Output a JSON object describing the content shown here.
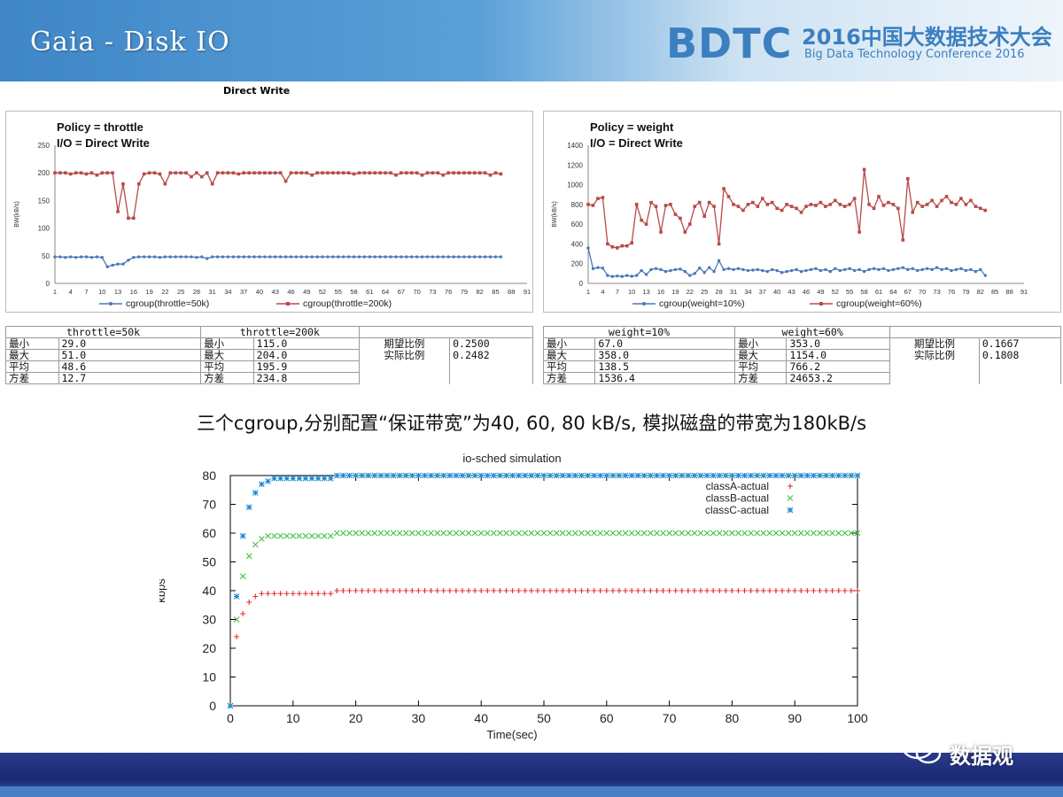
{
  "header": {
    "title": "Gaia - Disk IO",
    "logo": "BDTC",
    "logo_cn": "2016中国大数据技术大会",
    "logo_en": "Big Data Technology Conference 2016"
  },
  "caption_top": "Direct Write",
  "subtitle": "三个cgroup,分别配置“保证带宽”为40, 60, 80 kB/s, 模拟磁盘的带宽为180kB/s",
  "watermark": "数据观",
  "colors": {
    "blue_series": "#4a78b8",
    "red_series": "#b84a48",
    "classA": "#e03030",
    "classB": "#40c040",
    "classC": "#1a8ad0"
  },
  "chart_data": [
    {
      "type": "line",
      "title": "Policy = throttle",
      "subtitle": "I/O = Direct Write",
      "ylabel": "BW(kB/s)",
      "ylim": [
        0,
        250
      ],
      "yticks": [
        0,
        50,
        100,
        150,
        200,
        250
      ],
      "xticks": [
        "1",
        "4",
        "7",
        "10",
        "13",
        "16",
        "19",
        "22",
        "25",
        "28",
        "31",
        "34",
        "37",
        "40",
        "43",
        "46",
        "49",
        "52",
        "55",
        "58",
        "61",
        "64",
        "67",
        "70",
        "73",
        "76",
        "79",
        "82",
        "85",
        "88",
        "91"
      ],
      "legend": "bottom",
      "series": [
        {
          "name": "cgroup(throttle=50k)",
          "color": "#4a78b8",
          "values": [
            48,
            48,
            47,
            48,
            47,
            48,
            48,
            47,
            48,
            47,
            30,
            33,
            35,
            35,
            42,
            47,
            48,
            48,
            48,
            48,
            47,
            48,
            48,
            48,
            48,
            48,
            48,
            47,
            48,
            45,
            48,
            48,
            48,
            48,
            48,
            48,
            48,
            48,
            48,
            48,
            48,
            48,
            48,
            48,
            48,
            48,
            48,
            48,
            48,
            48,
            48,
            48,
            48,
            48,
            48,
            48,
            48,
            48,
            48,
            48,
            48,
            48,
            48,
            48,
            48,
            48,
            48,
            48,
            48,
            48,
            48,
            48,
            48,
            48,
            48,
            48,
            48,
            48,
            48,
            48,
            48,
            48,
            48,
            48,
            48,
            48
          ]
        },
        {
          "name": "cgroup(throttle=200k)",
          "color": "#b84a48",
          "values": [
            200,
            200,
            200,
            198,
            200,
            200,
            198,
            200,
            196,
            200,
            200,
            200,
            130,
            180,
            118,
            118,
            180,
            198,
            200,
            200,
            198,
            180,
            200,
            200,
            200,
            200,
            193,
            200,
            193,
            200,
            180,
            200,
            200,
            200,
            200,
            198,
            200,
            200,
            200,
            200,
            200,
            200,
            200,
            200,
            185,
            200,
            200,
            200,
            200,
            196,
            200,
            200,
            200,
            200,
            200,
            200,
            200,
            198,
            200,
            200,
            200,
            200,
            200,
            200,
            200,
            196,
            200,
            200,
            200,
            200,
            196,
            200,
            200,
            200,
            196,
            200,
            200,
            200,
            200,
            200,
            200,
            200,
            200,
            196,
            200,
            198
          ]
        }
      ]
    },
    {
      "type": "line",
      "title": "Policy = weight",
      "subtitle": "I/O = Direct Write",
      "ylabel": "BW(kB/s)",
      "ylim": [
        0,
        1400
      ],
      "yticks": [
        0,
        200,
        400,
        600,
        800,
        1000,
        1200,
        1400
      ],
      "xticks": [
        "1",
        "4",
        "7",
        "10",
        "13",
        "16",
        "19",
        "22",
        "25",
        "28",
        "31",
        "34",
        "37",
        "40",
        "43",
        "46",
        "49",
        "52",
        "55",
        "58",
        "61",
        "64",
        "67",
        "70",
        "73",
        "76",
        "79",
        "82",
        "85",
        "88",
        "91"
      ],
      "legend": "bottom",
      "series": [
        {
          "name": "cgroup(weight=10%)",
          "color": "#4a78b8",
          "values": [
            358,
            150,
            160,
            155,
            80,
            70,
            75,
            70,
            80,
            72,
            80,
            130,
            90,
            140,
            150,
            140,
            120,
            130,
            140,
            145,
            120,
            80,
            100,
            155,
            110,
            160,
            120,
            230,
            140,
            150,
            140,
            150,
            140,
            130,
            135,
            140,
            130,
            120,
            140,
            130,
            110,
            120,
            130,
            140,
            120,
            130,
            140,
            150,
            130,
            140,
            120,
            150,
            130,
            140,
            150,
            130,
            140,
            120,
            140,
            150,
            140,
            150,
            130,
            140,
            150,
            160,
            140,
            150,
            130,
            140,
            150,
            140,
            160,
            140,
            150,
            130,
            140,
            150,
            130,
            140,
            120,
            140,
            80
          ]
        },
        {
          "name": "cgroup(weight=60%)",
          "color": "#b84a48",
          "values": [
            800,
            790,
            860,
            870,
            400,
            370,
            360,
            380,
            380,
            410,
            800,
            640,
            600,
            820,
            780,
            520,
            790,
            800,
            700,
            660,
            520,
            600,
            780,
            820,
            680,
            820,
            780,
            400,
            960,
            880,
            800,
            780,
            740,
            800,
            820,
            780,
            860,
            800,
            820,
            760,
            740,
            800,
            780,
            760,
            720,
            780,
            800,
            790,
            820,
            780,
            800,
            840,
            800,
            780,
            800,
            860,
            520,
            1154,
            800,
            760,
            880,
            790,
            820,
            800,
            760,
            440,
            1060,
            720,
            820,
            780,
            800,
            840,
            780,
            840,
            880,
            820,
            800,
            860,
            800,
            840,
            780,
            760,
            740
          ]
        }
      ]
    },
    {
      "type": "scatter",
      "title": "io-sched simulation",
      "xlabel": "Time(sec)",
      "ylabel": "kbps",
      "xlim": [
        0,
        100
      ],
      "ylim": [
        0,
        80
      ],
      "xticks": [
        0,
        10,
        20,
        30,
        40,
        50,
        60,
        70,
        80,
        90,
        100
      ],
      "yticks": [
        0,
        10,
        20,
        30,
        40,
        50,
        60,
        70,
        80
      ],
      "legend": "top-right",
      "series": [
        {
          "name": "classA-actual",
          "color": "#e03030",
          "marker": "+",
          "points": [
            [
              0,
              0
            ],
            [
              1,
              24
            ],
            [
              2,
              32
            ],
            [
              3,
              36
            ],
            [
              4,
              38
            ],
            [
              5,
              39
            ],
            [
              6,
              39
            ],
            [
              7,
              39
            ],
            [
              8,
              39
            ],
            [
              9,
              39
            ],
            [
              10,
              39
            ],
            [
              11,
              39
            ],
            [
              12,
              39
            ],
            [
              13,
              39
            ],
            [
              14,
              39
            ],
            [
              15,
              39
            ],
            [
              16,
              39
            ],
            [
              17,
              40
            ],
            [
              18,
              40
            ],
            [
              100,
              40
            ]
          ]
        },
        {
          "name": "classB-actual",
          "color": "#40c040",
          "marker": "x",
          "points": [
            [
              0,
              0
            ],
            [
              1,
              30
            ],
            [
              2,
              45
            ],
            [
              3,
              52
            ],
            [
              4,
              56
            ],
            [
              5,
              58
            ],
            [
              6,
              59
            ],
            [
              7,
              59
            ],
            [
              8,
              59
            ],
            [
              9,
              59
            ],
            [
              10,
              59
            ],
            [
              11,
              59
            ],
            [
              12,
              59
            ],
            [
              13,
              59
            ],
            [
              14,
              59
            ],
            [
              15,
              59
            ],
            [
              16,
              59
            ],
            [
              17,
              60
            ],
            [
              18,
              60
            ],
            [
              100,
              60
            ]
          ]
        },
        {
          "name": "classC-actual",
          "color": "#1a8ad0",
          "marker": "*",
          "points": [
            [
              0,
              0
            ],
            [
              1,
              38
            ],
            [
              2,
              59
            ],
            [
              3,
              69
            ],
            [
              4,
              74
            ],
            [
              5,
              77
            ],
            [
              6,
              78
            ],
            [
              7,
              79
            ],
            [
              8,
              79
            ],
            [
              9,
              79
            ],
            [
              10,
              79
            ],
            [
              11,
              79
            ],
            [
              12,
              79
            ],
            [
              13,
              79
            ],
            [
              14,
              79
            ],
            [
              15,
              79
            ],
            [
              16,
              79
            ],
            [
              17,
              80
            ],
            [
              18,
              80
            ],
            [
              100,
              80
            ]
          ]
        }
      ]
    }
  ],
  "tables": {
    "throttle": {
      "headers": [
        "throttle=50k",
        "throttle=200k"
      ],
      "rows": [
        [
          "最小",
          "29.0",
          "最小",
          "115.0"
        ],
        [
          "最大",
          "51.0",
          "最大",
          "204.0"
        ],
        [
          "平均",
          "48.6",
          "平均",
          "195.9"
        ],
        [
          "方差",
          "12.7",
          "方差",
          "234.8"
        ]
      ],
      "ratio_labels": [
        "期望比例",
        "实际比例"
      ],
      "ratio_values": [
        "0.2500",
        "0.2482"
      ]
    },
    "weight": {
      "headers": [
        "weight=10%",
        "weight=60%"
      ],
      "rows": [
        [
          "最小",
          "67.0",
          "最小",
          "353.0"
        ],
        [
          "最大",
          "358.0",
          "最大",
          "1154.0"
        ],
        [
          "平均",
          "138.5",
          "平均",
          "766.2"
        ],
        [
          "方差",
          "1536.4",
          "方差",
          "24653.2"
        ]
      ],
      "ratio_labels": [
        "期望比例",
        "实际比例"
      ],
      "ratio_values": [
        "0.1667",
        "0.1808"
      ]
    }
  }
}
